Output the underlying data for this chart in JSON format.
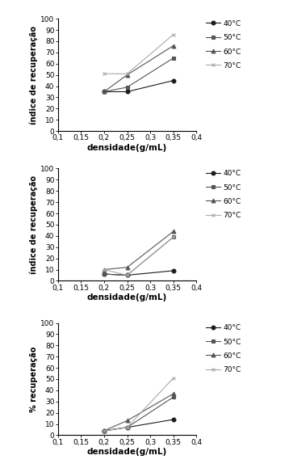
{
  "x": [
    0.2,
    0.25,
    0.35
  ],
  "subplot1": {
    "ylabel": "índice de recuperação",
    "xlabel": "densidade(g/mL)",
    "ylim": [
      0,
      100
    ],
    "yticks": [
      0,
      10,
      20,
      30,
      40,
      50,
      60,
      70,
      80,
      90,
      100
    ],
    "series": {
      "40°C": [
        35,
        35,
        45
      ],
      "50°C": [
        35,
        39,
        65
      ],
      "60°C": [
        35,
        50,
        76
      ],
      "70°C": [
        51,
        51,
        86
      ]
    }
  },
  "subplot2": {
    "ylabel": "índice de recuperação",
    "xlabel": "densidade(g/mL)",
    "ylim": [
      0,
      100
    ],
    "yticks": [
      0,
      10,
      20,
      30,
      40,
      50,
      60,
      70,
      80,
      90,
      100
    ],
    "series": {
      "40°C": [
        6,
        5,
        9
      ],
      "50°C": [
        6,
        5,
        39
      ],
      "60°C": [
        10,
        12,
        44
      ],
      "70°C": [
        10,
        5,
        39
      ]
    }
  },
  "subplot3": {
    "ylabel": "% recuperação",
    "xlabel": "densidade(g/mL)",
    "ylim": [
      0,
      100
    ],
    "yticks": [
      0,
      10,
      20,
      30,
      40,
      50,
      60,
      70,
      80,
      90,
      100
    ],
    "series": {
      "40°C": [
        4,
        7,
        14
      ],
      "50°C": [
        4,
        7,
        34
      ],
      "60°C": [
        4,
        13,
        37
      ],
      "70°C": [
        4,
        7,
        51
      ]
    }
  },
  "legend_labels": [
    "40°C",
    "50°C",
    "60°C",
    "70°C"
  ],
  "markers": [
    "o",
    "s",
    "^",
    "x"
  ],
  "colors": [
    "#1a1a1a",
    "#555555",
    "#555555",
    "#aaaaaa"
  ],
  "markerfacecolors": [
    "#1a1a1a",
    "#555555",
    "#555555",
    "none"
  ],
  "line_styles": [
    "-",
    "-",
    "-",
    "-"
  ],
  "linewidths": [
    0.8,
    0.8,
    0.8,
    0.8
  ],
  "xticks": [
    0.1,
    0.15,
    0.2,
    0.25,
    0.3,
    0.35,
    0.4
  ],
  "xtick_labels": [
    "0,1",
    "0,15",
    "0,2",
    "0,25",
    "0,3",
    "0,35",
    "0,4"
  ]
}
